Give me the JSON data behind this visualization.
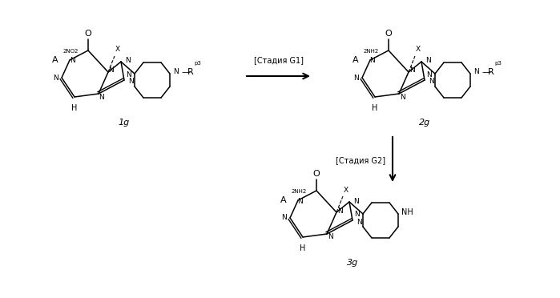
{
  "bg_color": "#ffffff",
  "fig_width": 6.99,
  "fig_height": 3.72,
  "dpi": 100,
  "lw": 1.1,
  "structures": {
    "1g_label": "1g",
    "2g_label": "2g",
    "3g_label": "3g",
    "stage_g1": "[Стадия G1]",
    "stage_g2": "[Стадия G2]"
  }
}
